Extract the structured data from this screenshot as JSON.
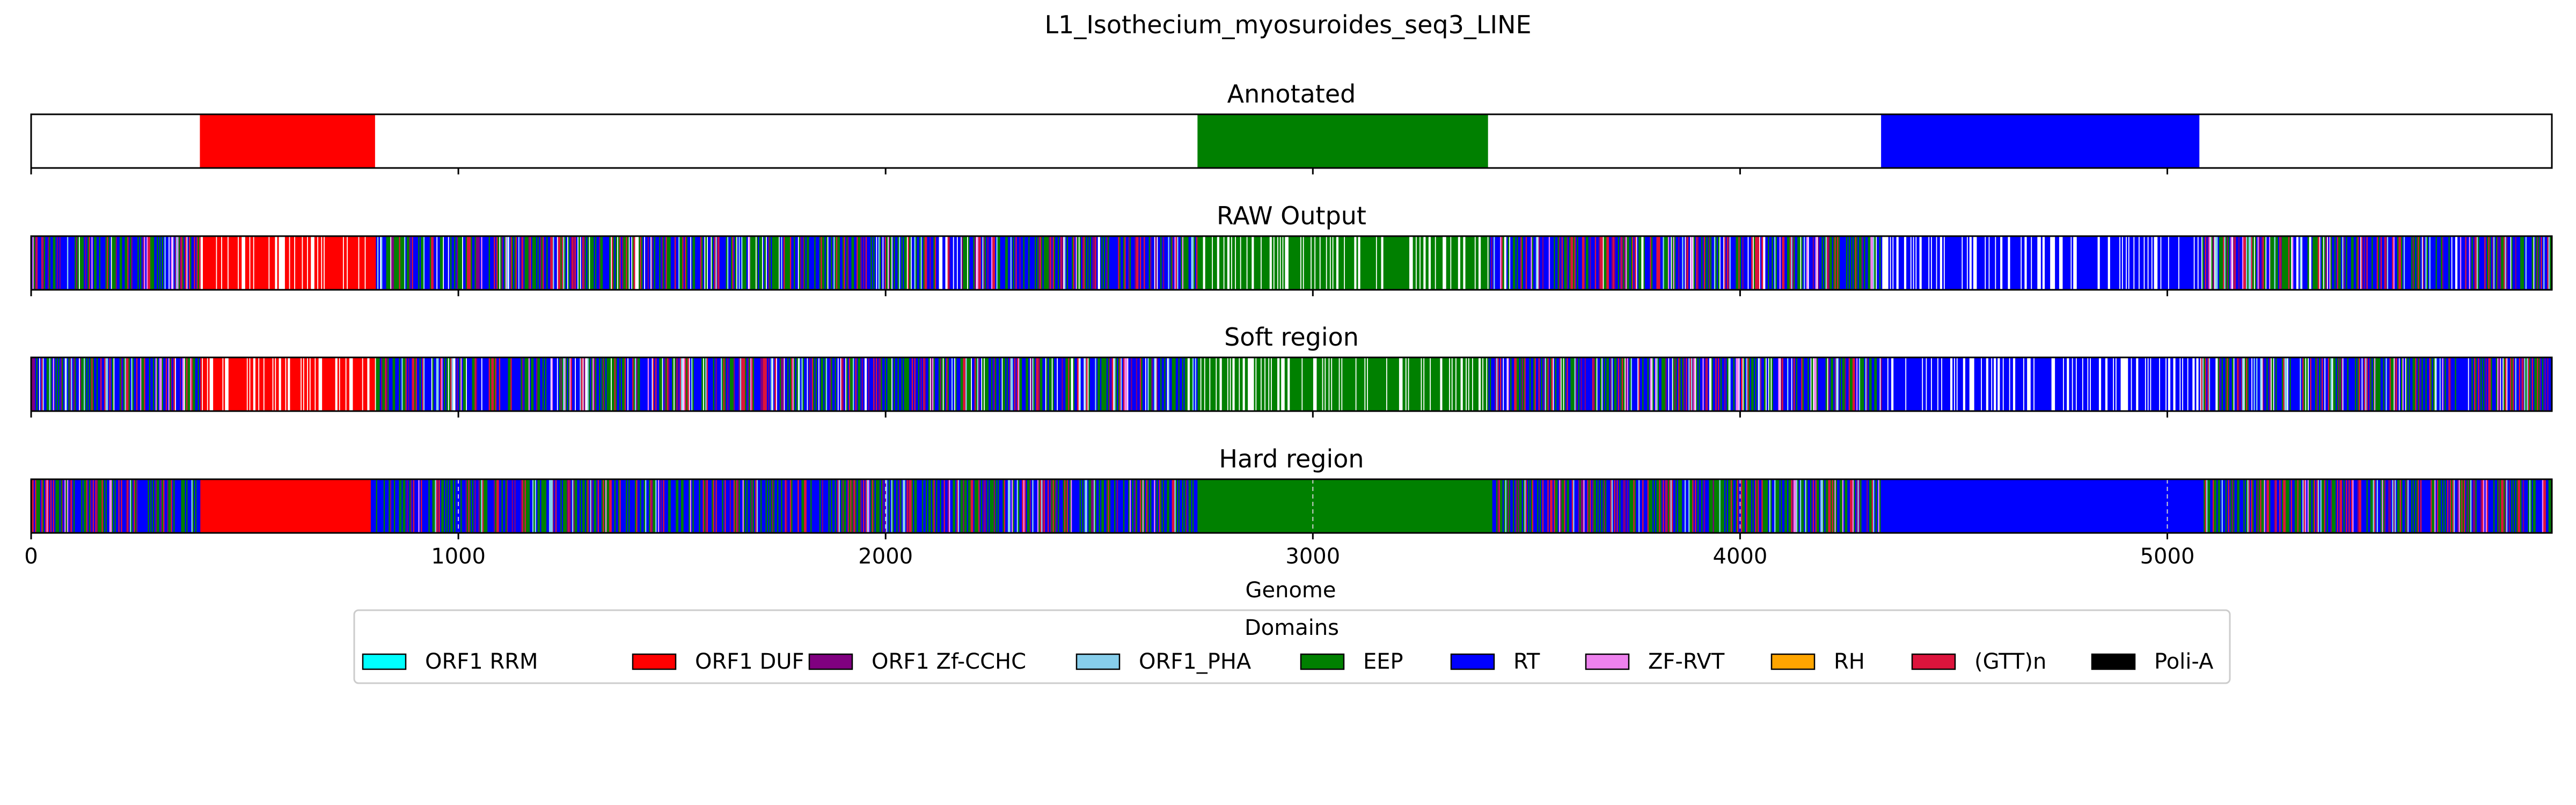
{
  "figure_title": "L1_Isothecium_myosuroides_seq3_LINE",
  "chart_data": {
    "type": "track",
    "title": "L1_Isothecium_myosuroides_seq3_LINE",
    "xlabel": "Genome",
    "xlim": [
      0,
      5900
    ],
    "xticks": [
      0,
      1000,
      2000,
      3000,
      4000,
      5000
    ],
    "xtick_labels": [
      "0",
      "1000",
      "2000",
      "3000",
      "4000",
      "5000"
    ],
    "grid": "dashed vertical lines at major ticks",
    "domain_colors": {
      "ORF1 RRM": "#00ffff",
      "ORF1 DUF": "#ff0000",
      "ORF1 Zf-CCHC": "#800080",
      "ORF1_PHA": "#87ceeb",
      "EEP": "#008000",
      "RT": "#0000ff",
      "ZF-RVT": "#ee82ee",
      "RH": "#ffa500",
      "(GTT)n": "#dc143c",
      "Poli-A": "#000000"
    },
    "panels": [
      {
        "title": "Annotated",
        "kind": "annotated",
        "segments": [
          {
            "domain": "ORF1 DUF",
            "start": 395,
            "end": 805
          },
          {
            "domain": "EEP",
            "start": 2730,
            "end": 3410
          },
          {
            "domain": "RT",
            "start": 4330,
            "end": 5075
          }
        ]
      },
      {
        "title": "RAW Output",
        "kind": "raw",
        "mixed": [
          "RT",
          "EEP",
          "(GTT)n",
          "ORF1 Zf-CCHC",
          "ORF1_PHA",
          "ZF-RVT"
        ],
        "dominant_regions": [
          {
            "domain": "ORF1 DUF",
            "start": 395,
            "end": 805
          },
          {
            "domain": "EEP",
            "start": 2730,
            "end": 3410
          },
          {
            "domain": "RT",
            "start": 4330,
            "end": 5075
          }
        ]
      },
      {
        "title": "Soft region",
        "kind": "soft",
        "mixed": [
          "RT",
          "EEP",
          "(GTT)n",
          "ORF1 Zf-CCHC",
          "ORF1_PHA",
          "ZF-RVT"
        ],
        "dominant_regions": [
          {
            "domain": "ORF1 DUF",
            "start": 395,
            "end": 805
          },
          {
            "domain": "EEP",
            "start": 2730,
            "end": 3410
          },
          {
            "domain": "RT",
            "start": 4330,
            "end": 5075
          }
        ]
      },
      {
        "title": "Hard region",
        "kind": "hard",
        "mixed": [
          "RT",
          "EEP",
          "(GTT)n",
          "ORF1 Zf-CCHC",
          "ORF1_PHA",
          "ZF-RVT"
        ],
        "dominant_regions": [
          {
            "domain": "ORF1 DUF",
            "start": 395,
            "end": 795
          },
          {
            "domain": "EEP",
            "start": 2730,
            "end": 3420
          },
          {
            "domain": "RT",
            "start": 4330,
            "end": 5080
          }
        ]
      }
    ],
    "legend": {
      "title": "Domains",
      "placement": "bottom-center",
      "entries": [
        "ORF1 RRM",
        "ORF1 DUF",
        "ORF1 Zf-CCHC",
        "ORF1_PHA",
        "EEP",
        "RT",
        "ZF-RVT",
        "RH",
        "(GTT)n",
        "Poli-A"
      ]
    }
  }
}
